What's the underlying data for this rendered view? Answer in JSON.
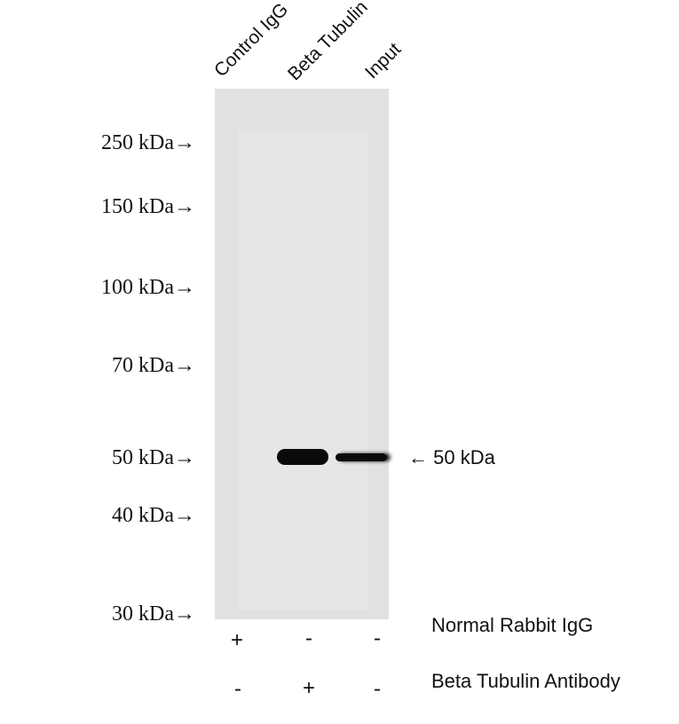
{
  "lanes": [
    "Control IgG",
    "Beta Tubulin",
    "Input"
  ],
  "markers": [
    "250 kDa→",
    "150 kDa→",
    "100 kDa→",
    "70 kDa→",
    "50 kDa→",
    "40 kDa→",
    "30 kDa→"
  ],
  "band_annotation": "← 50 kDa",
  "conditions": [
    {
      "label": "Normal Rabbit IgG",
      "signs": [
        "+",
        "-",
        "-"
      ]
    },
    {
      "label": "Beta Tubulin Antibody",
      "signs": [
        "-",
        "+",
        "-"
      ]
    }
  ],
  "colors": {
    "membrane": "#e1e1e1",
    "band": "#0a0a0a"
  }
}
